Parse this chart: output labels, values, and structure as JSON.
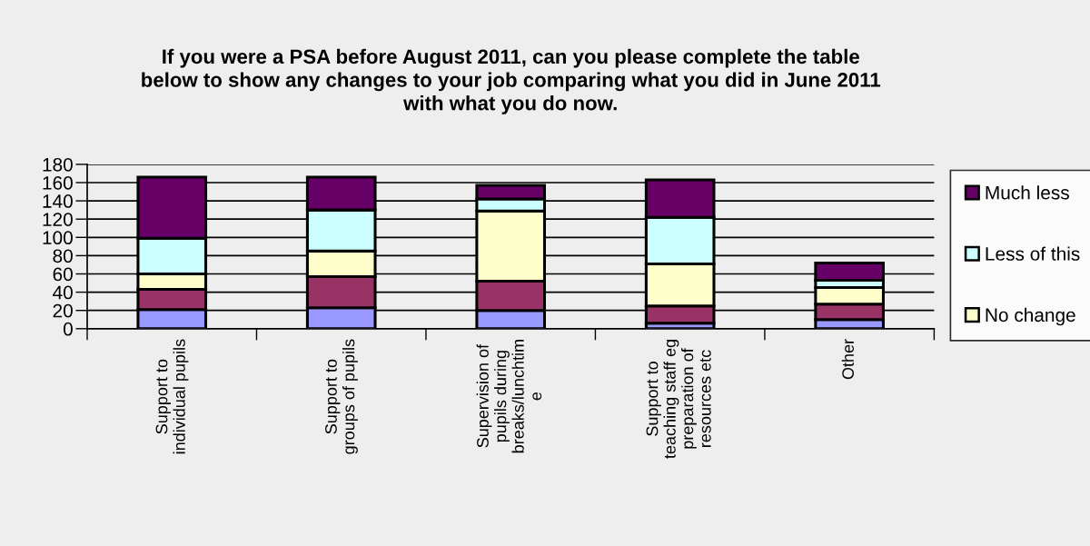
{
  "chart_data": {
    "type": "bar",
    "stacked": true,
    "title": "If you were a PSA before August 2011, can you please complete the table\nbelow to show any changes to your job comparing what you did in June 2011\nwith what you do now.",
    "categories": [
      "Support to\nindividual pupils",
      "Support to\ngroups of pupils",
      "Supervision of\npupils during\nbreaks/lunchtim\ne",
      "Support to\nteaching staff eg\npreparation of\nresources etc",
      "Other"
    ],
    "series": [
      {
        "color": "#9999ff",
        "values": [
          21,
          23,
          20,
          6,
          10
        ]
      },
      {
        "color": "#993366",
        "values": [
          22,
          34,
          32,
          19,
          17
        ]
      },
      {
        "name": "No change",
        "color": "#ffffcc",
        "values": [
          17,
          28,
          77,
          46,
          18
        ]
      },
      {
        "name": "Less of this",
        "color": "#ccffff",
        "values": [
          39,
          45,
          13,
          51,
          8
        ]
      },
      {
        "name": "Much less",
        "color": "#660066",
        "values": [
          67,
          36,
          15,
          41,
          19
        ]
      }
    ],
    "ylim": [
      0,
      180
    ],
    "yticks": [
      0,
      20,
      40,
      60,
      80,
      100,
      120,
      140,
      160,
      180
    ],
    "grid": "y",
    "legend": "right"
  }
}
